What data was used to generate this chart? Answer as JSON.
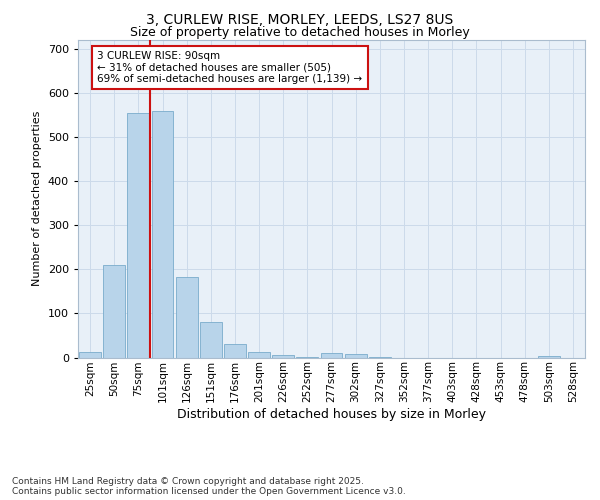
{
  "title_line1": "3, CURLEW RISE, MORLEY, LEEDS, LS27 8US",
  "title_line2": "Size of property relative to detached houses in Morley",
  "xlabel": "Distribution of detached houses by size in Morley",
  "ylabel": "Number of detached properties",
  "categories": [
    "25sqm",
    "50sqm",
    "75sqm",
    "101sqm",
    "126sqm",
    "151sqm",
    "176sqm",
    "201sqm",
    "226sqm",
    "252sqm",
    "277sqm",
    "302sqm",
    "327sqm",
    "352sqm",
    "377sqm",
    "403sqm",
    "428sqm",
    "453sqm",
    "478sqm",
    "503sqm",
    "528sqm"
  ],
  "values": [
    12,
    210,
    555,
    560,
    182,
    80,
    30,
    12,
    5,
    2,
    10,
    8,
    2,
    0,
    0,
    0,
    0,
    0,
    0,
    3,
    0
  ],
  "bar_color": "#b8d4ea",
  "bar_edge_color": "#7aaccc",
  "grid_color": "#ccdaea",
  "background_color": "#e8f0f8",
  "vline_color": "#cc1111",
  "annotation_text": "3 CURLEW RISE: 90sqm\n← 31% of detached houses are smaller (505)\n69% of semi-detached houses are larger (1,139) →",
  "annotation_box_facecolor": "#ffffff",
  "annotation_box_edgecolor": "#cc1111",
  "footer": "Contains HM Land Registry data © Crown copyright and database right 2025.\nContains public sector information licensed under the Open Government Licence v3.0.",
  "ylim": [
    0,
    720
  ],
  "yticks": [
    0,
    100,
    200,
    300,
    400,
    500,
    600,
    700
  ]
}
